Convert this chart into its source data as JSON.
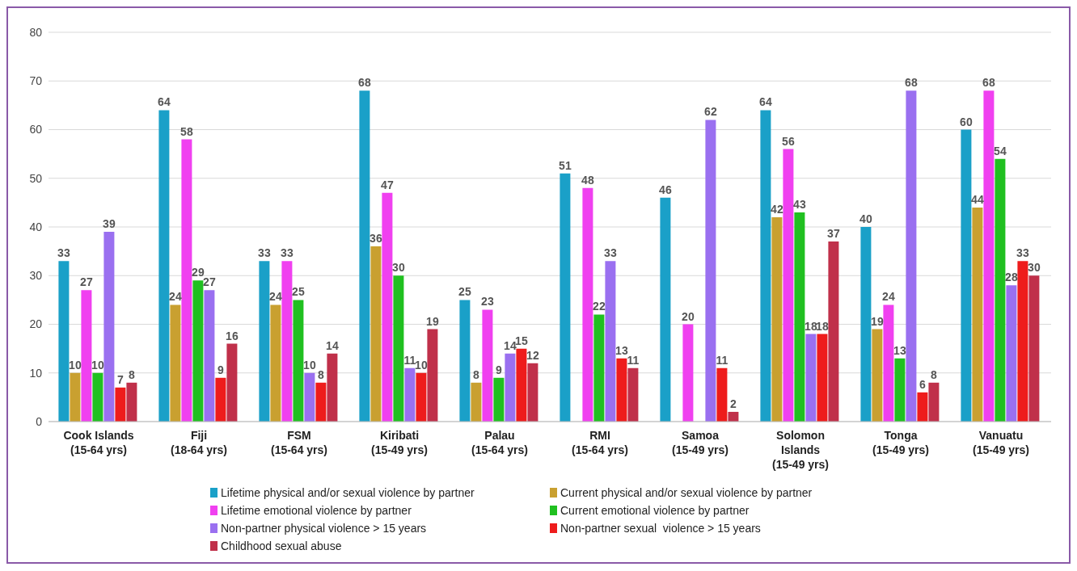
{
  "chart_data": {
    "type": "bar",
    "categories": [
      "Cook Islands\n(15-64 yrs)",
      "Fiji\n(18-64 yrs)",
      "FSM\n(15-64 yrs)",
      "Kiribati\n(15-49 yrs)",
      "Palau\n(15-64 yrs)",
      "RMI\n(15-64 yrs)",
      "Samoa\n(15-49 yrs)",
      "Solomon\nIslands\n(15-49 yrs)",
      "Tonga\n(15-49 yrs)",
      "Vanuatu\n(15-49 yrs)"
    ],
    "series": [
      {
        "name": "Lifetime physical and/or sexual violence by partner",
        "color": "#1aa0c8",
        "values": [
          33,
          64,
          33,
          68,
          25,
          51,
          46,
          64,
          40,
          60
        ]
      },
      {
        "name": "Current physical and/or sexual violence by partner",
        "color": "#c9a030",
        "values": [
          10,
          24,
          24,
          36,
          8,
          null,
          null,
          42,
          19,
          44
        ]
      },
      {
        "name": "Lifetime emotional violence by partner",
        "color": "#f040f0",
        "values": [
          27,
          58,
          33,
          47,
          23,
          48,
          20,
          56,
          24,
          68
        ]
      },
      {
        "name": "Current emotional violence by partner",
        "color": "#20c020",
        "values": [
          10,
          29,
          25,
          30,
          9,
          22,
          null,
          43,
          13,
          54
        ]
      },
      {
        "name": "Non-partner physical violence > 15 years",
        "color": "#9a70f0",
        "values": [
          39,
          27,
          10,
          11,
          14,
          33,
          62,
          18,
          68,
          28
        ]
      },
      {
        "name": "Non-partner sexual  violence > 15 years",
        "color": "#ee1c1c",
        "values": [
          7,
          9,
          8,
          10,
          15,
          13,
          11,
          18,
          6,
          33
        ]
      },
      {
        "name": "Childhood sexual abuse",
        "color": "#c0304a",
        "values": [
          8,
          16,
          14,
          19,
          12,
          11,
          2,
          37,
          8,
          30
        ]
      }
    ],
    "ylim": [
      0,
      80
    ],
    "yticks": [
      0,
      10,
      20,
      30,
      40,
      50,
      60,
      70,
      80
    ],
    "grid": "y",
    "legend": "bottom",
    "data_labels": true
  }
}
